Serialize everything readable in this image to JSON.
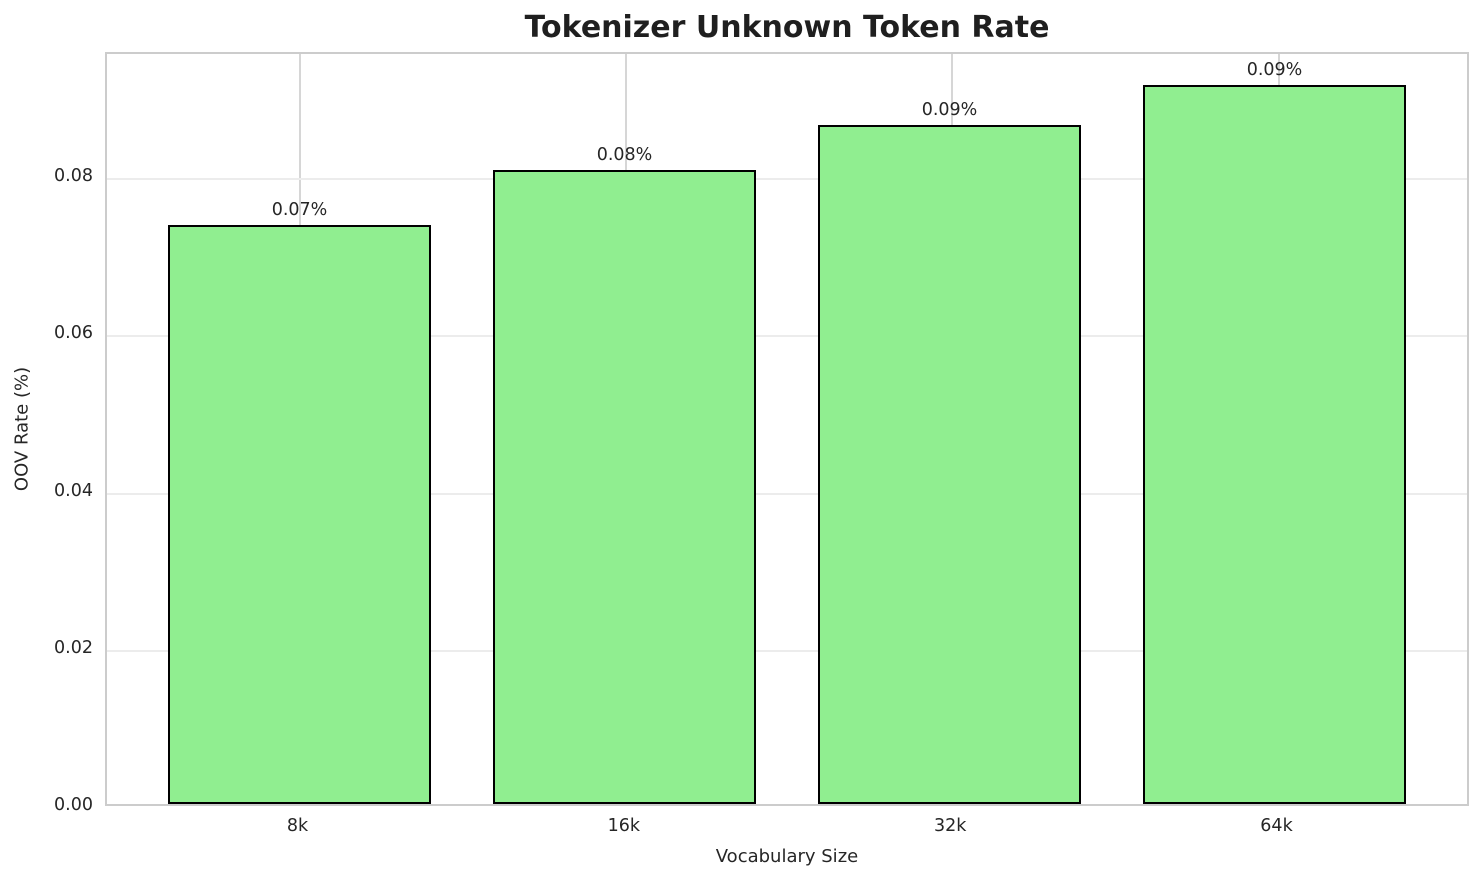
{
  "chart_data": {
    "type": "bar",
    "title": "Tokenizer Unknown Token Rate",
    "xlabel": "Vocabulary Size",
    "ylabel": "OOV Rate (%)",
    "categories": [
      "8k",
      "16k",
      "32k",
      "64k"
    ],
    "values": [
      0.0737,
      0.0806,
      0.0864,
      0.0914
    ],
    "bar_labels": [
      "0.07%",
      "0.08%",
      "0.09%",
      "0.09%"
    ],
    "y_ticks": [
      0.0,
      0.02,
      0.04,
      0.06,
      0.08
    ],
    "y_tick_labels": [
      "0.00",
      "0.02",
      "0.04",
      "0.06",
      "0.08"
    ],
    "ylim": [
      0,
      0.0959
    ],
    "grid": true,
    "legend": "none",
    "bar_color": "#90EE90",
    "bar_edge_color": "#000000"
  }
}
